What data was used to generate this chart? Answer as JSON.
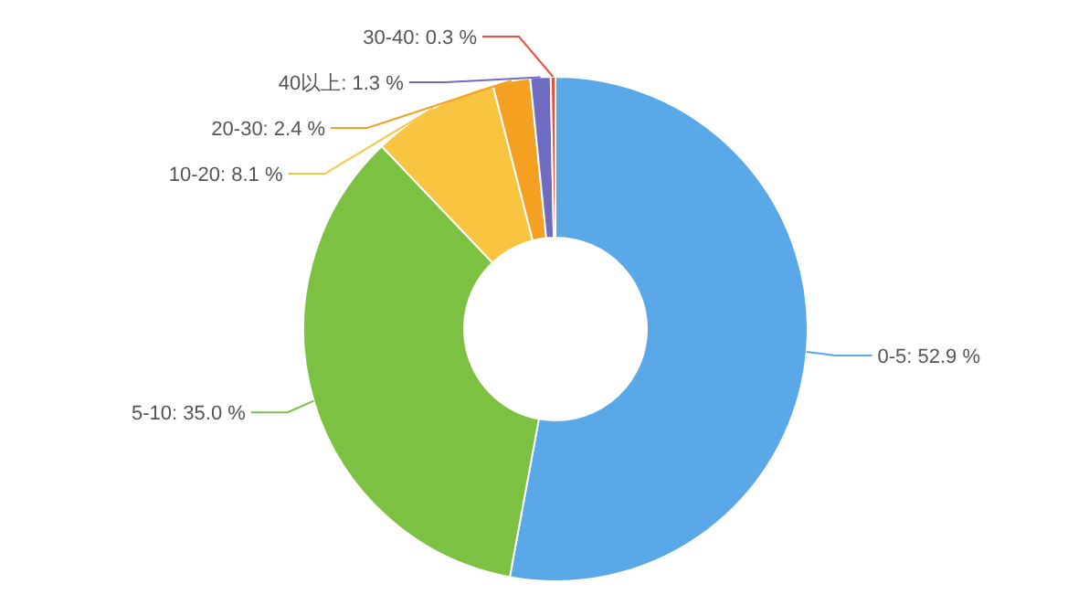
{
  "chart_data": {
    "type": "donut",
    "categories": [
      "0-5",
      "5-10",
      "10-20",
      "20-30",
      "40以上",
      "30-40"
    ],
    "values": [
      52.9,
      35.0,
      8.1,
      2.4,
      1.3,
      0.3
    ],
    "colors": [
      "#5aa8e8",
      "#7cc142",
      "#f9c440",
      "#f4a020",
      "#6f6bc0",
      "#e8503f"
    ],
    "value_labels": [
      "52.9 %",
      "35.0 %",
      "8.1 %",
      "2.4 %",
      "1.3 %",
      "0.3 %"
    ]
  }
}
